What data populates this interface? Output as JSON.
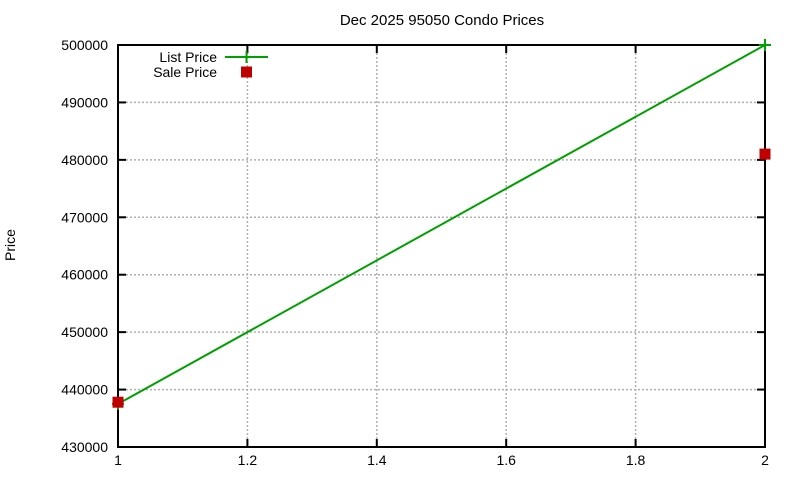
{
  "chart_data": {
    "type": "line",
    "title": "Dec 2025 95050 Condo Prices",
    "xlabel": "",
    "ylabel": "Price",
    "xlim": [
      1,
      2
    ],
    "ylim": [
      430000,
      500000
    ],
    "grid": true,
    "legend_position": "top-left-inside",
    "x_ticks": {
      "values": [
        1,
        1.2,
        1.4,
        1.6,
        1.8,
        2
      ],
      "labels": [
        "1",
        "1.2",
        "1.4",
        "1.6",
        "1.8",
        "2"
      ]
    },
    "y_ticks": {
      "values": [
        430000,
        440000,
        450000,
        460000,
        470000,
        480000,
        490000,
        500000
      ],
      "labels": [
        "430000",
        "440000",
        "450000",
        "460000",
        "470000",
        "480000",
        "490000",
        "500000"
      ]
    },
    "series": [
      {
        "name": "List Price",
        "type": "line+points",
        "marker": "plus",
        "color": "#00a000",
        "x": [
          1,
          2
        ],
        "y": [
          437500,
          500000
        ]
      },
      {
        "name": "Sale Price",
        "type": "points",
        "marker": "square",
        "color": "#c00000",
        "x": [
          1,
          2
        ],
        "y": [
          437800,
          481000
        ]
      }
    ],
    "colors": {
      "background": "#ffffff",
      "frame": "#000000",
      "grid": "#b0b0b0",
      "text": "#000000"
    }
  }
}
